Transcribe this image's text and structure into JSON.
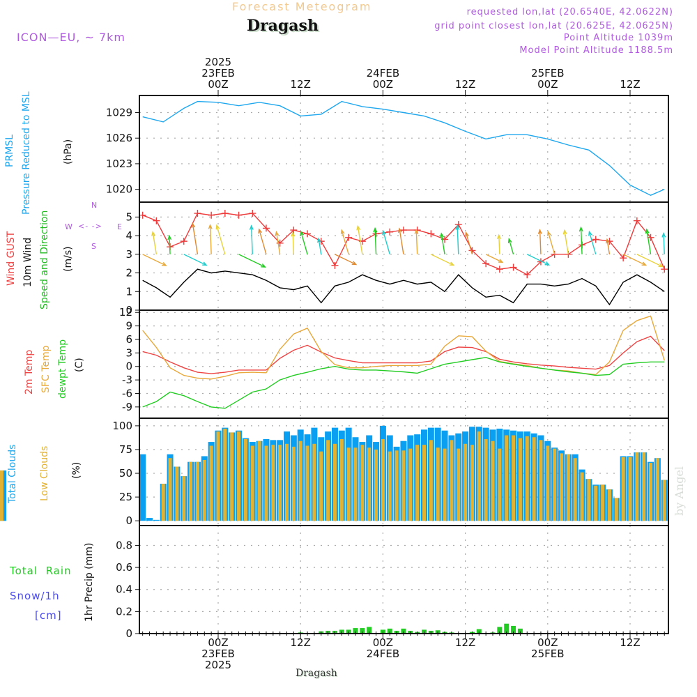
{
  "header": {
    "title": "Forecast Meteogram",
    "place": "Dragash",
    "model": "ICON—EU, ~ 7km",
    "requested": "requested lon,lat (20.6540E, 42.0622N)",
    "grid_point": "grid point closest lon,lat (20.625E, 42.0625N)",
    "point_altitude": "Point Altitude 1039m",
    "model_altitude": "Model Point Altitude 1188.5m"
  },
  "footer": {
    "place": "Dragash",
    "watermark": "by Angel"
  },
  "time_axis": {
    "top_labels": [
      {
        "text": "2025\n23FEB\n00Z",
        "hour": 0
      },
      {
        "text": "12Z",
        "hour": 12
      },
      {
        "text": "24FEB\n00Z",
        "hour": 24
      },
      {
        "text": "12Z",
        "hour": 36
      },
      {
        "text": "25FEB\n00Z",
        "hour": 48
      },
      {
        "text": "12Z",
        "hour": 60
      }
    ],
    "bottom_labels": [
      {
        "text": "00Z\n23FEB\n2025",
        "hour": 0
      },
      {
        "text": "12Z",
        "hour": 12
      },
      {
        "text": "00Z\n24FEB",
        "hour": 24
      },
      {
        "text": "12Z",
        "hour": 36
      },
      {
        "text": "00Z\n25FEB",
        "hour": 48
      },
      {
        "text": "12Z",
        "hour": 60
      }
    ],
    "range_hours": [
      -11.5,
      65.6
    ]
  },
  "panel_labels": {
    "pressure": [
      "PRMSL",
      "Pressure Reduced to MSL",
      "(hPa)"
    ],
    "wind": [
      "Wind GUST",
      "10m Wind",
      "Speed and Direction",
      "(m/s)"
    ],
    "compass": {
      "n": "N",
      "s": "S",
      "e": "E",
      "w": "W"
    },
    "temp": [
      "2m Temp",
      "SFC Temp",
      "dewpt Temp",
      "(C)"
    ],
    "clouds": [
      "Total Clouds",
      "Low Clouds",
      "(%)"
    ],
    "precip": [
      "Total  Rain",
      "Snow/1h",
      "[cm]",
      "1hr Precip (mm)"
    ]
  },
  "colors": {
    "pressure": "#1ea7ee",
    "gust": "#ee3b3b",
    "wind": "#000000",
    "t2m": "#ee4444",
    "tsfc": "#e8a93a",
    "dewpt": "#22cc22",
    "total_cloud": "#0a9ff0",
    "low_cloud": "#e2b233",
    "rain": "#22cc22",
    "label_purple": "#b05ae0"
  },
  "chart_data": [
    {
      "type": "line",
      "title": "PRMSL Pressure Reduced to MSL",
      "ylabel": "(hPa)",
      "ylim": [
        1018.5,
        1031.0
      ],
      "yticks": [
        1020,
        1023,
        1026,
        1029
      ],
      "x_hours": [
        -11,
        -8,
        -5,
        -3,
        0,
        3,
        6,
        9,
        12,
        15,
        18,
        21,
        24,
        27,
        30,
        33,
        36,
        39,
        42,
        45,
        48,
        51,
        54,
        57,
        60,
        63,
        65
      ],
      "series": [
        {
          "name": "PRMSL",
          "values": [
            1028.5,
            1027.9,
            1029.5,
            1030.3,
            1030.2,
            1029.8,
            1030.2,
            1029.8,
            1028.6,
            1028.8,
            1030.3,
            1029.7,
            1029.4,
            1029.0,
            1028.6,
            1027.8,
            1026.8,
            1025.9,
            1026.4,
            1026.4,
            1025.9,
            1025.2,
            1024.6,
            1022.8,
            1020.5,
            1019.3,
            1020.0
          ]
        }
      ]
    },
    {
      "type": "line",
      "title": "Wind GUST / 10m Wind Speed and Direction",
      "ylabel": "(m/s)",
      "ylim": [
        0,
        5.8
      ],
      "yticks": [
        0,
        1,
        2,
        3,
        4,
        5
      ],
      "x_hours": [
        -11,
        -9,
        -7,
        -5,
        -3,
        -1,
        1,
        3,
        5,
        7,
        9,
        11,
        13,
        15,
        17,
        19,
        21,
        23,
        25,
        27,
        29,
        31,
        33,
        35,
        37,
        39,
        41,
        43,
        45,
        47,
        49,
        51,
        53,
        55,
        57,
        59,
        61,
        63,
        65
      ],
      "series": [
        {
          "name": "Wind GUST",
          "values": [
            5.1,
            4.8,
            3.4,
            3.7,
            5.2,
            5.1,
            5.2,
            5.1,
            5.2,
            4.4,
            3.6,
            4.3,
            4.1,
            3.7,
            2.4,
            3.9,
            3.7,
            4.1,
            4.2,
            4.3,
            4.3,
            4.1,
            3.8,
            4.6,
            3.2,
            2.5,
            2.2,
            2.3,
            1.9,
            2.6,
            3.0,
            3.0,
            3.5,
            3.8,
            3.7,
            2.8,
            4.8,
            3.9,
            2.2
          ]
        },
        {
          "name": "10m Wind",
          "values": [
            1.6,
            1.2,
            0.7,
            1.5,
            2.2,
            2.0,
            2.1,
            2.0,
            1.9,
            1.6,
            1.2,
            1.1,
            1.3,
            0.4,
            1.3,
            1.5,
            1.9,
            1.6,
            1.4,
            1.6,
            1.4,
            1.5,
            1.0,
            1.9,
            1.2,
            0.7,
            0.8,
            0.4,
            1.4,
            1.4,
            1.3,
            1.4,
            1.7,
            1.3,
            0.3,
            1.5,
            1.9,
            1.5,
            1.0
          ]
        }
      ],
      "wind_direction_note": "arrows colored by speed; mostly northerly/north-northwesterly, southeasterly segments"
    },
    {
      "type": "line",
      "title": "2m Temp / SFC Temp / dewpt Temp",
      "ylabel": "(C)",
      "ylim": [
        -11.5,
        12.5
      ],
      "yticks": [
        -9,
        -6,
        -3,
        0,
        3,
        6,
        9,
        12
      ],
      "x_hours": [
        -11,
        -9,
        -7,
        -5,
        -3,
        -1,
        1,
        3,
        5,
        7,
        9,
        11,
        13,
        15,
        17,
        19,
        21,
        23,
        25,
        27,
        29,
        31,
        33,
        35,
        37,
        39,
        41,
        43,
        45,
        47,
        49,
        51,
        53,
        55,
        57,
        59,
        61,
        63,
        65
      ],
      "series": [
        {
          "name": "2m Temp",
          "values": [
            3.3,
            2.5,
            1.0,
            -0.3,
            -1.3,
            -1.6,
            -1.3,
            -0.8,
            -0.8,
            -0.8,
            1.8,
            3.6,
            4.7,
            3.2,
            1.9,
            1.3,
            0.8,
            0.8,
            0.8,
            0.8,
            0.8,
            1.2,
            3.3,
            4.3,
            4.2,
            3.3,
            1.6,
            1.0,
            0.6,
            0.3,
            0.1,
            -0.2,
            -0.4,
            -0.6,
            0.2,
            3.0,
            5.5,
            6.7,
            3.5
          ]
        },
        {
          "name": "SFC Temp",
          "values": [
            8.0,
            4.2,
            -0.3,
            -2.0,
            -2.6,
            -2.8,
            -2.2,
            -1.4,
            -1.3,
            -1.4,
            3.8,
            7.2,
            8.5,
            3.3,
            0.4,
            -0.3,
            -0.3,
            0.0,
            0.2,
            0.2,
            0.2,
            0.5,
            4.5,
            6.8,
            6.6,
            3.4,
            1.1,
            0.6,
            0.2,
            -0.4,
            -0.8,
            -1.0,
            -1.5,
            -1.8,
            1.0,
            8.0,
            10.2,
            11.2,
            1.3
          ]
        },
        {
          "name": "dewpt Temp",
          "values": [
            -9.0,
            -7.8,
            -5.7,
            -6.5,
            -7.8,
            -9.0,
            -9.3,
            -7.5,
            -5.7,
            -5.0,
            -3.0,
            -2.0,
            -1.3,
            -0.5,
            0.0,
            -0.6,
            -0.8,
            -0.8,
            -1.0,
            -1.2,
            -1.5,
            -0.5,
            0.5,
            1.0,
            1.5,
            2.0,
            1.0,
            0.5,
            0.0,
            -0.4,
            -0.8,
            -1.2,
            -1.5,
            -2.0,
            -1.8,
            0.5,
            0.8,
            1.0,
            1.0
          ]
        }
      ]
    },
    {
      "type": "bar",
      "title": "Total Clouds / Low Clouds",
      "ylabel": "(%)",
      "ylim": [
        -5,
        108
      ],
      "yticks": [
        0,
        25,
        50,
        75,
        100
      ],
      "x_hours": [
        -11,
        -10,
        -9,
        -8,
        -7,
        -6,
        -5,
        -4,
        -3,
        -2,
        -1,
        0,
        1,
        2,
        3,
        4,
        5,
        6,
        7,
        8,
        9,
        10,
        11,
        12,
        13,
        14,
        15,
        16,
        17,
        18,
        19,
        20,
        21,
        22,
        23,
        24,
        25,
        26,
        27,
        28,
        29,
        30,
        31,
        32,
        33,
        34,
        35,
        36,
        37,
        38,
        39,
        40,
        41,
        42,
        43,
        44,
        45,
        46,
        47,
        48,
        49,
        50,
        51,
        52,
        53,
        54,
        55,
        56,
        57,
        58,
        59,
        60,
        61,
        62,
        63,
        64,
        65
      ],
      "series": [
        {
          "name": "Total Clouds",
          "values": [
            70,
            3,
            1,
            39,
            70,
            57,
            47,
            62,
            62,
            68,
            83,
            95,
            98,
            93,
            95,
            87,
            83,
            84,
            86,
            85,
            85,
            94,
            90,
            96,
            91,
            98,
            88,
            94,
            98,
            95,
            98,
            88,
            83,
            90,
            83,
            100,
            90,
            78,
            84,
            90,
            91,
            96,
            98,
            98,
            95,
            90,
            92,
            94,
            99,
            99,
            98,
            96,
            97,
            96,
            95,
            94,
            94,
            92,
            90,
            84,
            77,
            74,
            70,
            70,
            54,
            44,
            38,
            38,
            33,
            24,
            68,
            68,
            72,
            72,
            62,
            66,
            43,
            41,
            53
          ]
        },
        {
          "name": "Low Clouds",
          "values": [
            0,
            0,
            0,
            39,
            66,
            57,
            47,
            62,
            62,
            64,
            79,
            94,
            97,
            93,
            94,
            86,
            79,
            84,
            79,
            80,
            80,
            81,
            78,
            84,
            79,
            81,
            73,
            85,
            81,
            86,
            77,
            77,
            80,
            77,
            75,
            86,
            73,
            74,
            74,
            76,
            80,
            80,
            85,
            77,
            76,
            85,
            76,
            81,
            80,
            94,
            86,
            84,
            76,
            90,
            90,
            87,
            89,
            88,
            85,
            79,
            76,
            71,
            70,
            66,
            51,
            44,
            37,
            38,
            33,
            24,
            67,
            67,
            72,
            72,
            61,
            66,
            43,
            41,
            53
          ]
        }
      ]
    },
    {
      "type": "bar",
      "title": "1hr Precip",
      "ylabel": "1hr Precip (mm)",
      "ylim": [
        0,
        0.98
      ],
      "yticks": [
        0,
        0.2,
        0.4,
        0.6,
        0.8
      ],
      "x_hours": [
        12,
        14,
        15,
        16,
        17,
        18,
        19,
        20,
        21,
        22,
        24,
        25,
        26,
        27,
        28,
        29,
        30,
        31,
        32,
        33,
        34,
        37,
        38,
        40,
        41,
        42,
        43,
        44
      ],
      "series": [
        {
          "name": "Total Rain",
          "values": [
            0.01,
            0.003,
            0.02,
            0.025,
            0.025,
            0.035,
            0.035,
            0.05,
            0.05,
            0.06,
            0.035,
            0.045,
            0.025,
            0.045,
            0.025,
            0.015,
            0.035,
            0.025,
            0.03,
            0.015,
            0.01,
            0.015,
            0.04,
            0.01,
            0.06,
            0.09,
            0.07,
            0.045
          ]
        },
        {
          "name": "Snow/1h",
          "values": []
        }
      ]
    }
  ]
}
